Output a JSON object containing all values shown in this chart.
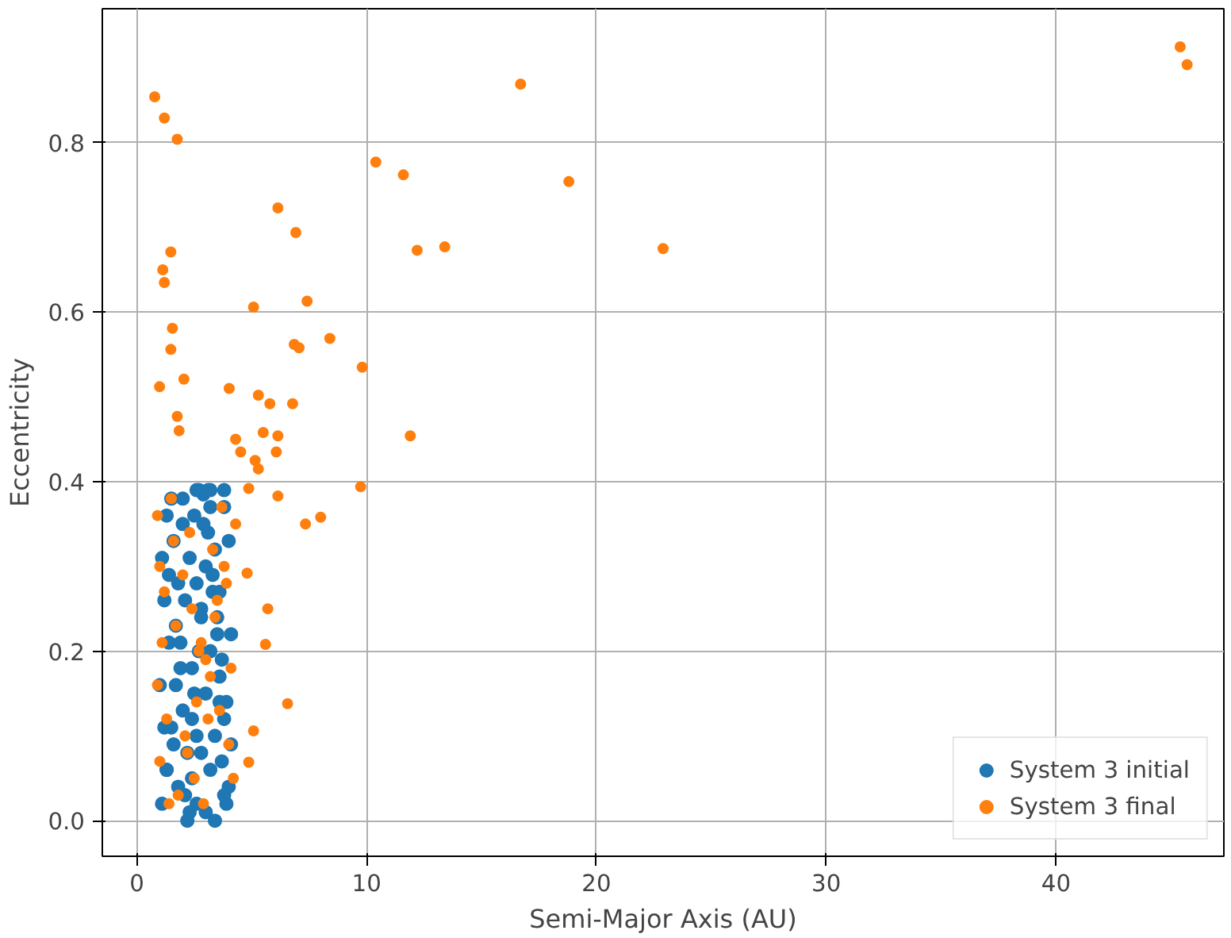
{
  "chart_data": {
    "type": "scatter",
    "xlabel": "Semi-Major Axis (AU)",
    "ylabel": "Eccentricity",
    "xlim": [
      -1.5,
      47.3
    ],
    "ylim": [
      -0.042,
      0.958
    ],
    "xticks": [
      0,
      10,
      20,
      30,
      40
    ],
    "yticks": [
      {
        "value": 0,
        "label": "0.0"
      },
      {
        "value": 0.2,
        "label": "0.2"
      },
      {
        "value": 0.4,
        "label": "0.4"
      },
      {
        "value": 0.6,
        "label": "0.6"
      },
      {
        "value": 0.8,
        "label": "0.8"
      }
    ],
    "grid": true,
    "legend": "bottom right",
    "marker": "circle",
    "series": [
      {
        "name": "System 3 initial",
        "color": "#1f77b4",
        "x": [
          1.1,
          1.3,
          1.2,
          1.0,
          1.4,
          1.2,
          1.1,
          1.3,
          1.5,
          1.6,
          1.8,
          1.7,
          1.9,
          2.0,
          2.2,
          2.1,
          2.3,
          2.4,
          2.6,
          2.5,
          2.7,
          2.8,
          3.0,
          2.9,
          3.1,
          3.2,
          3.4,
          3.3,
          3.5,
          3.6,
          3.8,
          3.7,
          3.9,
          4.0,
          4.1,
          3.9,
          3.7,
          3.5,
          3.3,
          3.1,
          2.9,
          2.7,
          2.5,
          2.3,
          2.1,
          1.9,
          1.7,
          1.5,
          1.3,
          2.2,
          2.6,
          3.0,
          3.4,
          3.8,
          2.4,
          2.8,
          3.2,
          3.6,
          4.0,
          1.6,
          2.0,
          2.4,
          2.8,
          3.2,
          3.6,
          1.4,
          1.8,
          2.6,
          3.0,
          3.4,
          3.8,
          4.1,
          2.0,
          2.6,
          3.2,
          3.8
        ],
        "values": [
          0.02,
          0.06,
          0.11,
          0.16,
          0.21,
          0.26,
          0.31,
          0.36,
          0.38,
          0.33,
          0.28,
          0.23,
          0.18,
          0.13,
          0.08,
          0.03,
          0.01,
          0.05,
          0.1,
          0.15,
          0.2,
          0.25,
          0.3,
          0.35,
          0.39,
          0.37,
          0.32,
          0.27,
          0.22,
          0.17,
          0.12,
          0.07,
          0.02,
          0.04,
          0.09,
          0.14,
          0.19,
          0.24,
          0.29,
          0.34,
          0.385,
          0.39,
          0.36,
          0.31,
          0.26,
          0.21,
          0.16,
          0.11,
          0.06,
          0.0,
          0.02,
          0.01,
          0.0,
          0.03,
          0.12,
          0.24,
          0.06,
          0.27,
          0.33,
          0.09,
          0.35,
          0.18,
          0.08,
          0.2,
          0.14,
          0.29,
          0.04,
          0.28,
          0.15,
          0.1,
          0.37,
          0.22,
          0.38,
          0.39,
          0.39,
          0.39
        ]
      },
      {
        "name": "System 3 final",
        "color": "#ff7f0e",
        "x": [
          0.78,
          1.2,
          1.76,
          1.48,
          1.13,
          1.2,
          1.55,
          1.48,
          0.99,
          2.05,
          1.76,
          1.84,
          6.14,
          6.92,
          5.08,
          7.41,
          6.85,
          7.06,
          8.4,
          9.81,
          5.29,
          5.79,
          6.78,
          4.02,
          5.5,
          4.3,
          6.14,
          4.52,
          6.07,
          5.15,
          5.29,
          4.87,
          6.14,
          7.34,
          8.0,
          9.74,
          10.4,
          11.6,
          12.2,
          13.4,
          11.9,
          16.7,
          18.8,
          22.9,
          45.4,
          45.7,
          4.8,
          5.7,
          5.6,
          6.56,
          5.08,
          4.87,
          0.9,
          1.0,
          1.2,
          1.1,
          0.9,
          1.3,
          1.0,
          1.4,
          1.6,
          2.0,
          2.4,
          2.8,
          3.2,
          3.6,
          4.0,
          4.2,
          1.8,
          2.2,
          2.6,
          3.0,
          3.4,
          3.8,
          4.3,
          1.5,
          2.1,
          2.7,
          3.3,
          3.9,
          1.7,
          2.5,
          3.1,
          3.7,
          4.1,
          2.3,
          2.9,
          3.5
        ],
        "values": [
          0.854,
          0.829,
          0.804,
          0.671,
          0.65,
          0.635,
          0.581,
          0.556,
          0.512,
          0.521,
          0.477,
          0.46,
          0.723,
          0.694,
          0.606,
          0.613,
          0.562,
          0.558,
          0.569,
          0.535,
          0.502,
          0.492,
          0.492,
          0.51,
          0.458,
          0.45,
          0.454,
          0.435,
          0.435,
          0.425,
          0.415,
          0.392,
          0.383,
          0.35,
          0.358,
          0.394,
          0.777,
          0.762,
          0.673,
          0.677,
          0.454,
          0.869,
          0.754,
          0.675,
          0.913,
          0.892,
          0.292,
          0.25,
          0.208,
          0.138,
          0.106,
          0.069,
          0.36,
          0.3,
          0.27,
          0.21,
          0.16,
          0.12,
          0.07,
          0.02,
          0.33,
          0.29,
          0.25,
          0.21,
          0.17,
          0.13,
          0.09,
          0.05,
          0.03,
          0.08,
          0.14,
          0.19,
          0.24,
          0.3,
          0.35,
          0.38,
          0.1,
          0.2,
          0.32,
          0.28,
          0.23,
          0.05,
          0.12,
          0.37,
          0.18,
          0.34,
          0.02,
          0.26
        ]
      }
    ]
  }
}
